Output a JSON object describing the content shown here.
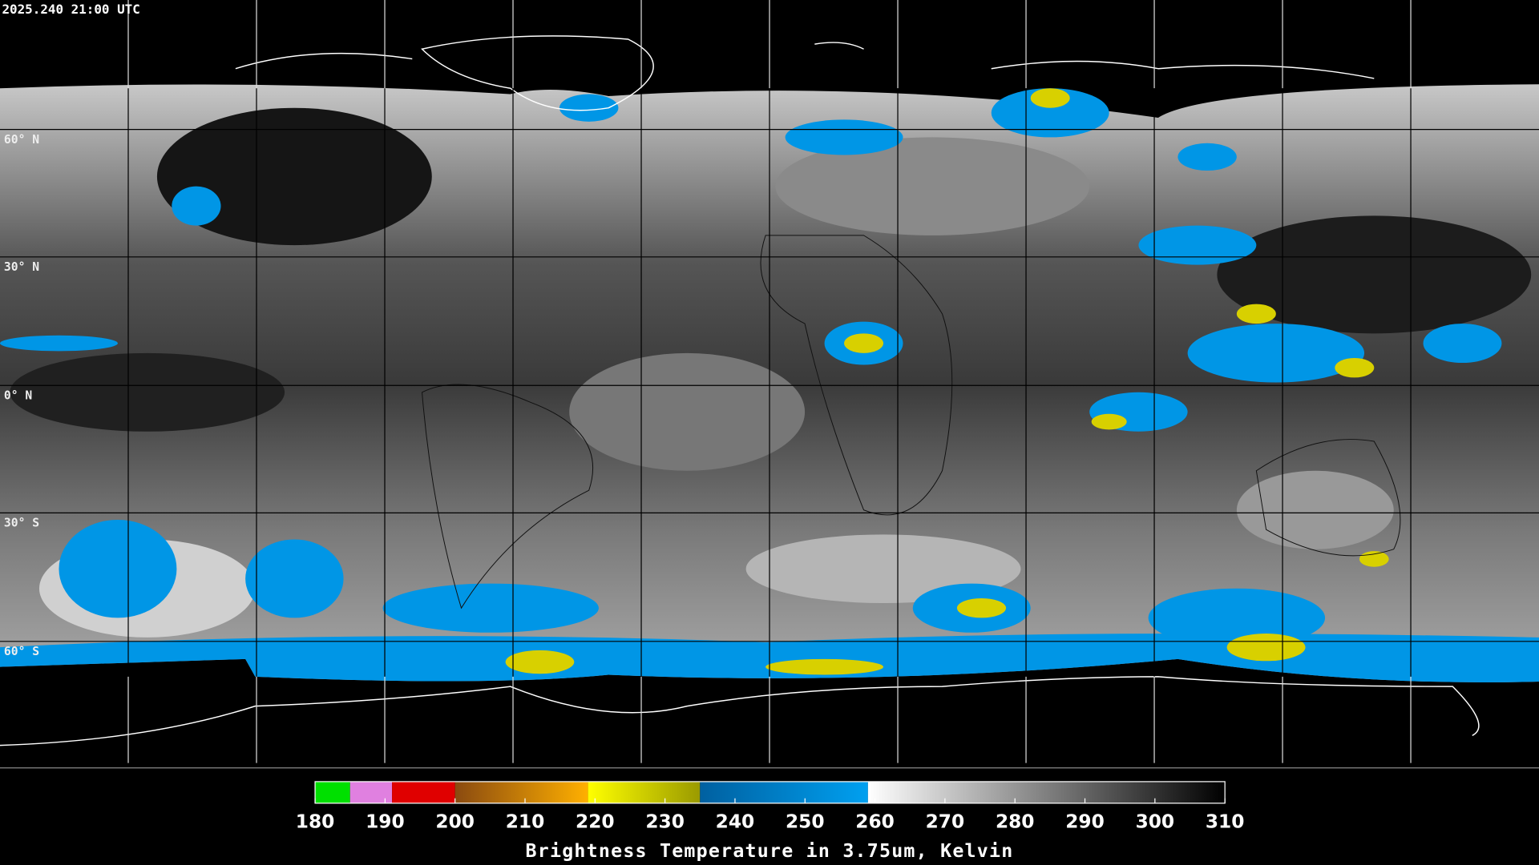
{
  "header": {
    "timestamp": "2025.240 21:00 UTC"
  },
  "map": {
    "lat_labels": [
      "60° N",
      "30° N",
      "0° N",
      "30° S",
      "60° S"
    ]
  },
  "colorbar": {
    "range": [
      180,
      310
    ],
    "ticks": [
      180,
      190,
      200,
      210,
      220,
      230,
      240,
      250,
      260,
      270,
      280,
      290,
      300,
      310
    ],
    "segments": [
      {
        "from": 180,
        "to": 185,
        "colors": [
          "#00e000",
          "#00e000"
        ]
      },
      {
        "from": 185,
        "to": 191,
        "colors": [
          "#e080e0",
          "#e080e0"
        ]
      },
      {
        "from": 191,
        "to": 200,
        "colors": [
          "#e00000",
          "#e00000"
        ]
      },
      {
        "from": 200,
        "to": 219,
        "colors": [
          "#8a4a10",
          "#ffb000"
        ]
      },
      {
        "from": 219,
        "to": 235,
        "colors": [
          "#ffff00",
          "#9a9a00"
        ]
      },
      {
        "from": 235,
        "to": 259,
        "colors": [
          "#0060a0",
          "#00a0f0"
        ]
      },
      {
        "from": 259,
        "to": 310,
        "colors": [
          "#ffffff",
          "#000000"
        ]
      }
    ],
    "title": "Brightness Temperature in 3.75um, Kelvin"
  }
}
